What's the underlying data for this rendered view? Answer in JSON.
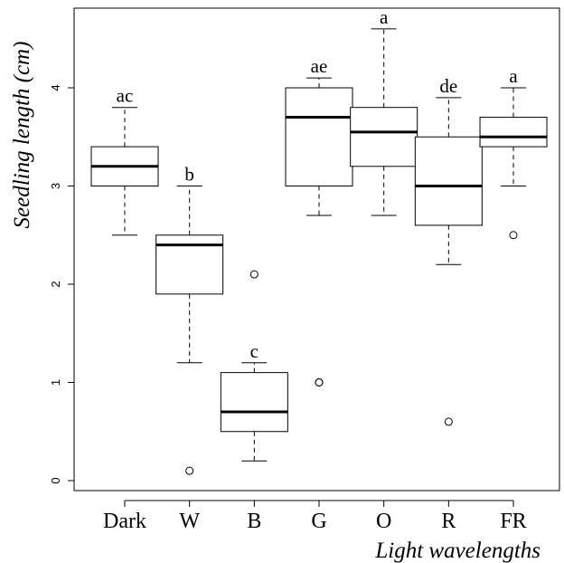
{
  "chart_data": {
    "type": "box",
    "xlabel": "Light wavelengths",
    "ylabel": "Seedling length (cm)",
    "ylim": [
      -0.15,
      4.88
    ],
    "yticks": [
      0,
      1,
      2,
      3,
      4
    ],
    "grid": false,
    "categories": [
      "Dark",
      "W",
      "B",
      "G",
      "O",
      "R",
      "FR"
    ],
    "boxes": [
      {
        "category": "Dark",
        "whisker_low": 2.5,
        "q1": 3.0,
        "median": 3.2,
        "q3": 3.4,
        "whisker_high": 3.8,
        "outliers": [],
        "letter": "ac"
      },
      {
        "category": "W",
        "whisker_low": 1.2,
        "q1": 1.9,
        "median": 2.4,
        "q3": 2.5,
        "whisker_high": 3.0,
        "outliers": [
          0.1
        ],
        "letter": "b"
      },
      {
        "category": "B",
        "whisker_low": 0.2,
        "q1": 0.5,
        "median": 0.7,
        "q3": 1.1,
        "whisker_high": 1.2,
        "outliers": [
          2.1
        ],
        "letter": "c"
      },
      {
        "category": "G",
        "whisker_low": 2.7,
        "q1": 3.0,
        "median": 3.7,
        "q3": 4.0,
        "whisker_high": 4.1,
        "outliers": [
          1.0,
          1.0
        ],
        "letter": "ae"
      },
      {
        "category": "O",
        "whisker_low": 2.7,
        "q1": 3.2,
        "median": 3.55,
        "q3": 3.8,
        "whisker_high": 4.6,
        "outliers": [],
        "letter": "a"
      },
      {
        "category": "R",
        "whisker_low": 2.2,
        "q1": 2.6,
        "median": 3.0,
        "q3": 3.5,
        "whisker_high": 3.9,
        "outliers": [
          0.6
        ],
        "letter": "de"
      },
      {
        "category": "FR",
        "whisker_low": 3.0,
        "q1": 3.4,
        "median": 3.5,
        "q3": 3.7,
        "whisker_high": 4.0,
        "outliers": [
          2.5
        ],
        "letter": "a"
      }
    ]
  }
}
